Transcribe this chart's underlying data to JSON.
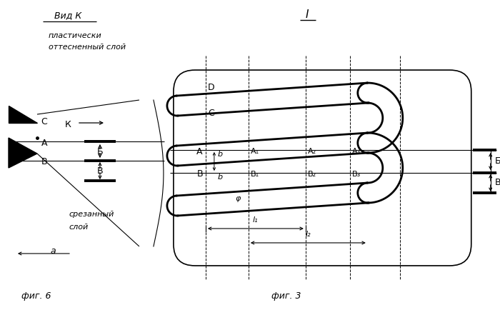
{
  "bg_color": "#ffffff",
  "fig_width": 7.0,
  "fig_height": 4.48,
  "dpi": 100,
  "title_text": "I",
  "vid_k_text": "Вид К",
  "fig3_text": "фиг. 3",
  "fig6_text": "фиг. 6",
  "plast_text1": "пластически",
  "plast_text2": "оттесненный слой",
  "srez_text1": "срезанный",
  "srez_text2": "слой"
}
